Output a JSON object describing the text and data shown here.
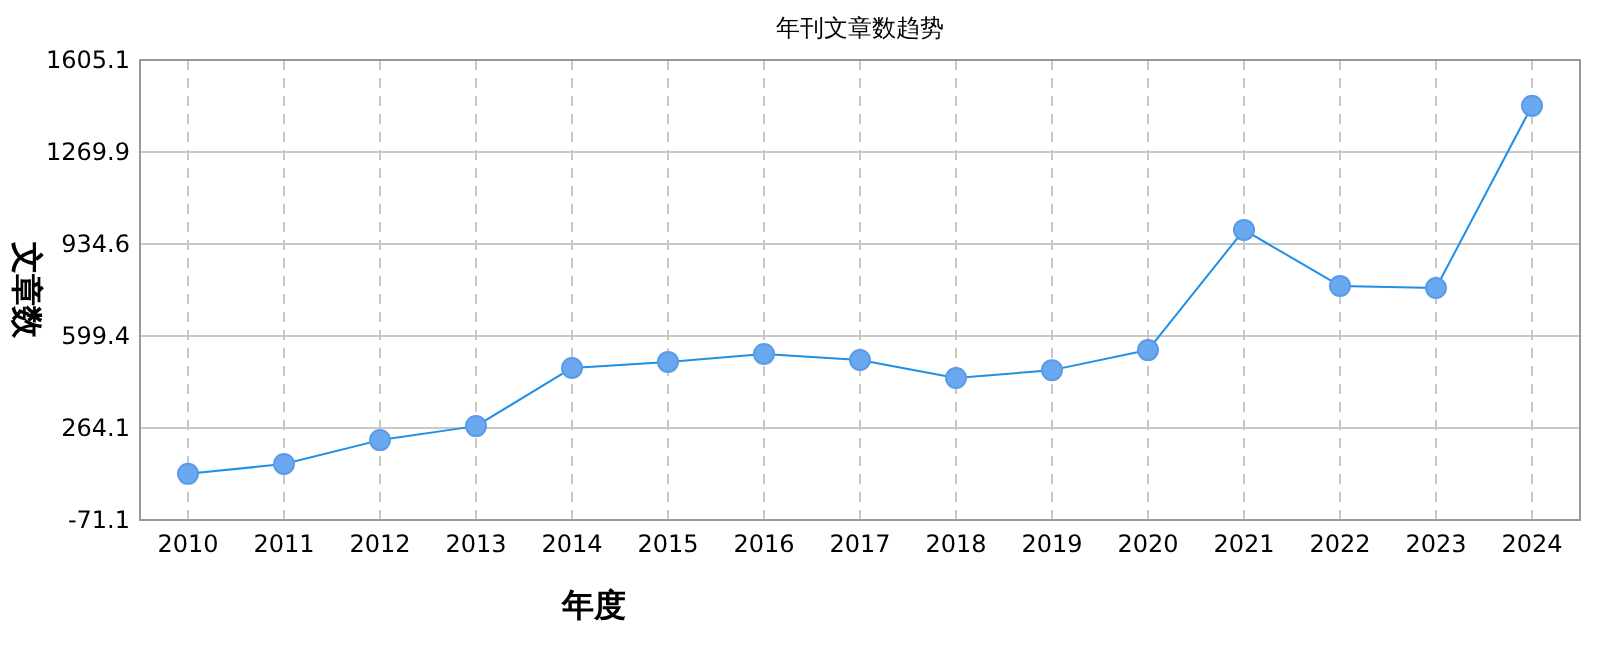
{
  "chart_data": {
    "type": "line",
    "title": "年刊文章数趋势",
    "xlabel": "年度",
    "ylabel": "文章数",
    "categories": [
      "2010",
      "2011",
      "2012",
      "2013",
      "2014",
      "2015",
      "2016",
      "2017",
      "2018",
      "2019",
      "2020",
      "2021",
      "2022",
      "2023",
      "2024"
    ],
    "series": [
      {
        "color": "#1e90e8",
        "values": [
          97,
          133,
          220,
          271,
          483,
          505,
          534,
          512,
          446,
          475,
          548,
          986,
          782,
          774,
          1438
        ]
      }
    ],
    "ylim": [
      -71.1,
      1605.1
    ],
    "yticks": [
      -71.1,
      264.1,
      599.4,
      934.6,
      1269.9,
      1605.1
    ],
    "grid": true,
    "marker": "circle",
    "line_style": "solid"
  }
}
